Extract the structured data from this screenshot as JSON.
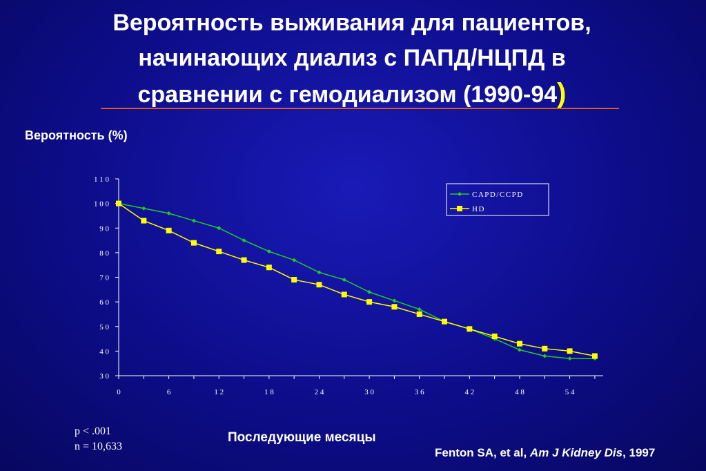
{
  "slide": {
    "title_line1": "Вероятность выживания для пациентов,",
    "title_line2": "начинающих диализ с ПАПД/НЦПД в",
    "title_line3": "сравнении с гемодиализом (1990-94",
    "title_paren": ")",
    "ylabel": "Вероятность (%)",
    "xlabel": "Последующие месяцы",
    "p_value": "p < .001",
    "n_value": "n = 10,633",
    "citation_authors": "Fenton SA, et al,",
    "citation_journal": "Am J Kidney Dis",
    "citation_year": ", 1997",
    "colors": {
      "background": "#0d0d8a",
      "title_rule": "#e05a1a",
      "accent": "#ffff00"
    }
  },
  "chart_data": {
    "type": "line",
    "x": [
      0,
      3,
      6,
      9,
      12,
      15,
      18,
      21,
      24,
      27,
      30,
      33,
      36,
      39,
      42,
      45,
      48,
      51,
      54,
      57
    ],
    "series": [
      {
        "name": "CAPD/CCPD",
        "color": "#22cc22",
        "marker": "diamond",
        "values": [
          100,
          98,
          96,
          93,
          90,
          85,
          80.5,
          77,
          72,
          69,
          64,
          60.5,
          57,
          52,
          49,
          45,
          40.5,
          38,
          37,
          37
        ]
      },
      {
        "name": "HD",
        "color": "#ffff00",
        "marker": "square",
        "values": [
          100,
          93,
          89,
          84,
          80.5,
          77,
          74,
          69,
          67,
          63,
          60,
          58,
          55,
          52,
          49,
          46,
          43,
          41,
          40,
          38
        ]
      }
    ],
    "xlim": [
      0,
      58
    ],
    "ylim": [
      30,
      110
    ],
    "x_ticks": [
      0,
      6,
      12,
      18,
      24,
      30,
      36,
      42,
      48,
      54
    ],
    "y_ticks": [
      30,
      40,
      50,
      60,
      70,
      80,
      90,
      100,
      110
    ],
    "legend_position": "top-right",
    "grid": false
  }
}
